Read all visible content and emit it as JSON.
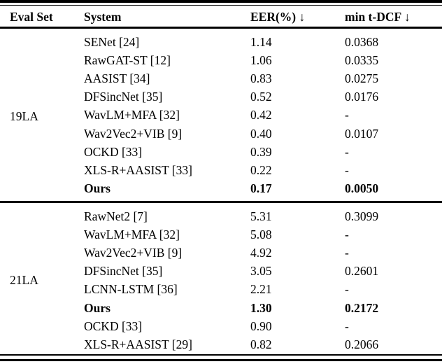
{
  "table": {
    "columns": [
      "Eval Set",
      "System",
      "EER(%) ↓",
      "min t-DCF ↓"
    ],
    "sections": [
      {
        "eval_set": "19LA",
        "rows": [
          {
            "system": "SENet [24]",
            "eer": "1.14",
            "min_tdcf": "0.0368",
            "bold": false
          },
          {
            "system": "RawGAT-ST [12]",
            "eer": "1.06",
            "min_tdcf": "0.0335",
            "bold": false
          },
          {
            "system": "AASIST [34]",
            "eer": "0.83",
            "min_tdcf": "0.0275",
            "bold": false
          },
          {
            "system": "DFSincNet [35]",
            "eer": "0.52",
            "min_tdcf": "0.0176",
            "bold": false
          },
          {
            "system": "WavLM+MFA [32]",
            "eer": "0.42",
            "min_tdcf": "-",
            "bold": false
          },
          {
            "system": "Wav2Vec2+VIB [9]",
            "eer": "0.40",
            "min_tdcf": "0.0107",
            "bold": false
          },
          {
            "system": "OCKD [33]",
            "eer": "0.39",
            "min_tdcf": "-",
            "bold": false
          },
          {
            "system": "XLS-R+AASIST [33]",
            "eer": "0.22",
            "min_tdcf": "-",
            "bold": false
          },
          {
            "system": "Ours",
            "eer": "0.17",
            "min_tdcf": "0.0050",
            "bold": true
          }
        ]
      },
      {
        "eval_set": "21LA",
        "rows": [
          {
            "system": "RawNet2 [7]",
            "eer": "5.31",
            "min_tdcf": "0.3099",
            "bold": false
          },
          {
            "system": "WavLM+MFA [32]",
            "eer": "5.08",
            "min_tdcf": "-",
            "bold": false
          },
          {
            "system": "Wav2Vec2+VIB [9]",
            "eer": "4.92",
            "min_tdcf": "-",
            "bold": false
          },
          {
            "system": "DFSincNet [35]",
            "eer": "3.05",
            "min_tdcf": "0.2601",
            "bold": false
          },
          {
            "system": "LCNN-LSTM [36]",
            "eer": "2.21",
            "min_tdcf": "-",
            "bold": false
          },
          {
            "system": "Ours",
            "eer": "1.30",
            "min_tdcf": "0.2172",
            "bold": true
          },
          {
            "system": "OCKD [33]",
            "eer": "0.90",
            "min_tdcf": "-",
            "bold": false
          },
          {
            "system": "XLS-R+AASIST [29]",
            "eer": "0.82",
            "min_tdcf": "0.2066",
            "bold": false
          }
        ]
      }
    ]
  }
}
